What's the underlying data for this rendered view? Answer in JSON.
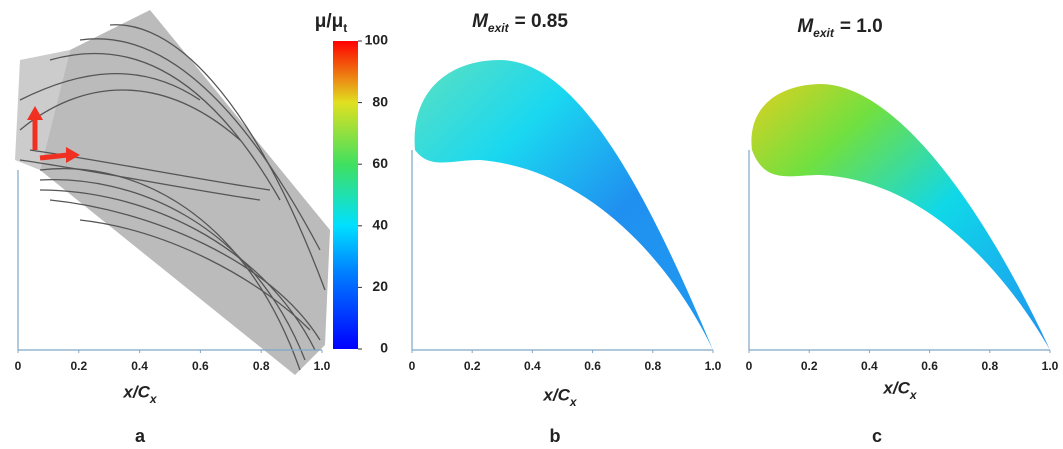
{
  "chart_data": [
    {
      "type": "streamline",
      "xlim": [
        0,
        1
      ],
      "xticks": [
        0,
        0.2,
        0.4,
        0.6,
        0.8,
        {
          "value": 1,
          "label": "1.0"
        }
      ],
      "xlabel": "x/C",
      "xlabel_subscript": "x",
      "panel_label": "a"
    },
    {
      "type": "colorbar",
      "label": "μ/μ",
      "label_subscript": "t",
      "ylim": [
        0,
        100
      ],
      "yticks": [
        0,
        20,
        40,
        60,
        80,
        100
      ]
    },
    {
      "type": "contour",
      "title": "M",
      "title_subscript": "exit",
      "title_value": "= 0.85",
      "xlim": [
        0,
        1
      ],
      "xticks": [
        0,
        0.2,
        0.4,
        0.6,
        0.8,
        {
          "value": 1,
          "label": "1.0"
        }
      ],
      "xlabel": "x/C",
      "xlabel_subscript": "x",
      "panel_label": "b"
    },
    {
      "type": "contour",
      "title": "M",
      "title_subscript": "exit",
      "title_value": "= 1.0",
      "xlim": [
        0,
        1
      ],
      "xticks": [
        0,
        0.2,
        0.4,
        0.6,
        0.8,
        {
          "value": 1,
          "label": "1.0"
        }
      ],
      "xlabel": "x/C",
      "xlabel_subscript": "x",
      "panel_label": "c"
    }
  ]
}
